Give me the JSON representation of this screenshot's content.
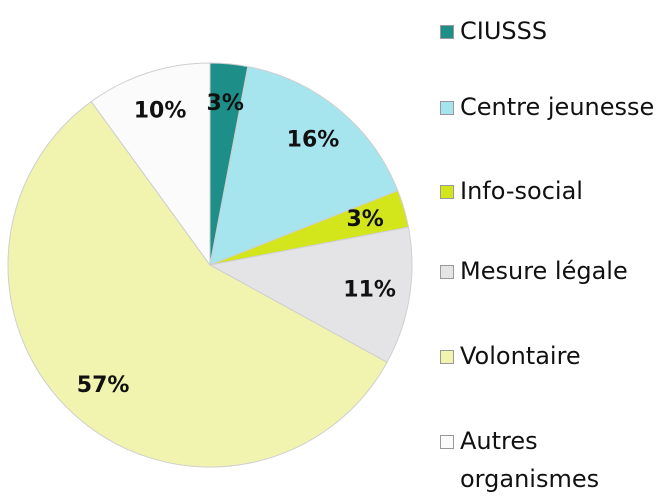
{
  "chart_data": {
    "type": "pie",
    "categories": [
      "CIUSSS",
      "Centre jeunesse",
      "Info-social",
      "Mesure légale",
      "Volontaire",
      "Autres organismes"
    ],
    "values": [
      3,
      16,
      3,
      11,
      57,
      10
    ],
    "value_labels": [
      "3%",
      "16%",
      "3%",
      "11%",
      "57%",
      "10%"
    ],
    "colors": [
      "#1e8e89",
      "#a6e4ee",
      "#d3e61c",
      "#e4e4e6",
      "#f1f4ae",
      "#fbfbfb"
    ]
  }
}
